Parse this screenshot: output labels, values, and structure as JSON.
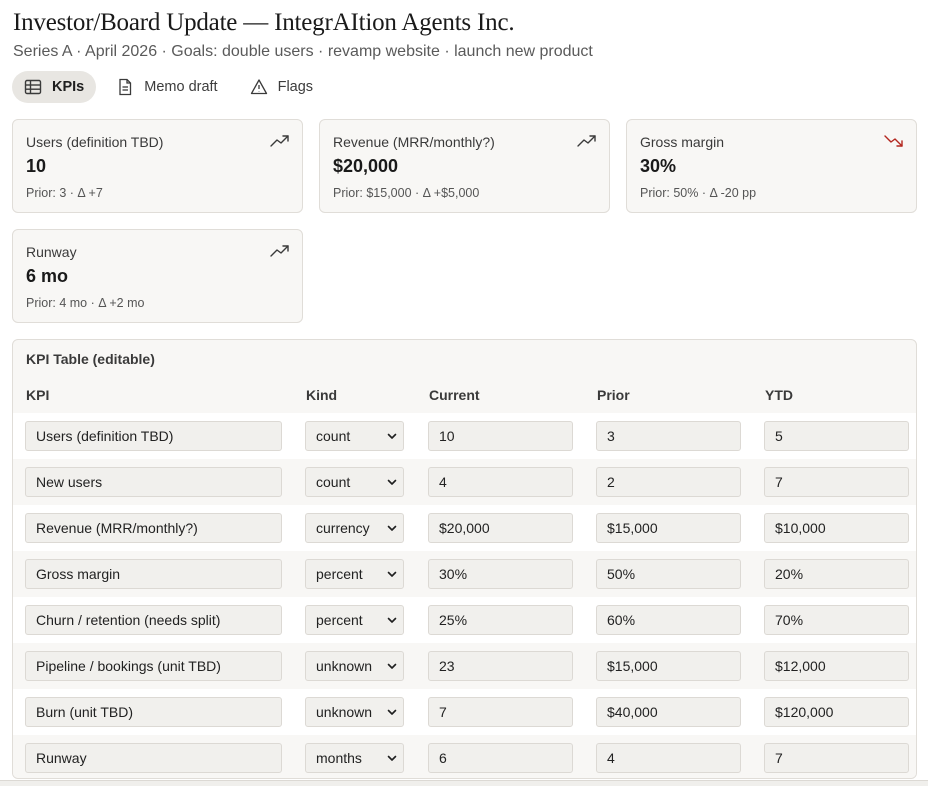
{
  "header": {
    "title": "Investor/Board Update — IntegrAItion Agents Inc.",
    "subtitle": "Series A · April 2026 · Goals: double users · revamp website · launch new product"
  },
  "tabs": [
    {
      "label": "KPIs",
      "icon": "table-icon",
      "active": true
    },
    {
      "label": "Memo draft",
      "icon": "document-icon",
      "active": false
    },
    {
      "label": "Flags",
      "icon": "warning-icon",
      "active": false
    }
  ],
  "cards": [
    {
      "label": "Users (definition TBD)",
      "value": "10",
      "prior": "Prior: 3 · Δ +7",
      "trend": "up"
    },
    {
      "label": "Revenue (MRR/monthly?)",
      "value": "$20,000",
      "prior": "Prior: $15,000 · Δ +$5,000",
      "trend": "up"
    },
    {
      "label": "Gross margin",
      "value": "30%",
      "prior": "Prior: 50% · Δ -20 pp",
      "trend": "down"
    },
    {
      "label": "Runway",
      "value": "6 mo",
      "prior": "Prior: 4 mo · Δ +2 mo",
      "trend": "up"
    }
  ],
  "kpi_table": {
    "title": "KPI Table (editable)",
    "columns": [
      "KPI",
      "Kind",
      "Current",
      "Prior",
      "YTD"
    ],
    "rows": [
      {
        "kpi": "Users (definition TBD)",
        "kind": "count",
        "current": "10",
        "prior": "3",
        "ytd": "5"
      },
      {
        "kpi": "New users",
        "kind": "count",
        "current": "4",
        "prior": "2",
        "ytd": "7"
      },
      {
        "kpi": "Revenue (MRR/monthly?)",
        "kind": "currency",
        "current": "$20,000",
        "prior": "$15,000",
        "ytd": "$10,000"
      },
      {
        "kpi": "Gross margin",
        "kind": "percent",
        "current": "30%",
        "prior": "50%",
        "ytd": "20%"
      },
      {
        "kpi": "Churn / retention (needs split)",
        "kind": "percent",
        "current": "25%",
        "prior": "60%",
        "ytd": "70%"
      },
      {
        "kpi": "Pipeline / bookings (unit TBD)",
        "kind": "unknown",
        "current": "23",
        "prior": "$15,000",
        "ytd": "$12,000"
      },
      {
        "kpi": "Burn (unit TBD)",
        "kind": "unknown",
        "current": "7",
        "prior": "$40,000",
        "ytd": "$120,000"
      },
      {
        "kpi": "Runway",
        "kind": "months",
        "current": "6",
        "prior": "4",
        "ytd": "7"
      }
    ]
  },
  "colors": {
    "trend_up": "#3a3a3a",
    "trend_down": "#b3261e",
    "active_tab_bg": "#e8e6e2"
  }
}
